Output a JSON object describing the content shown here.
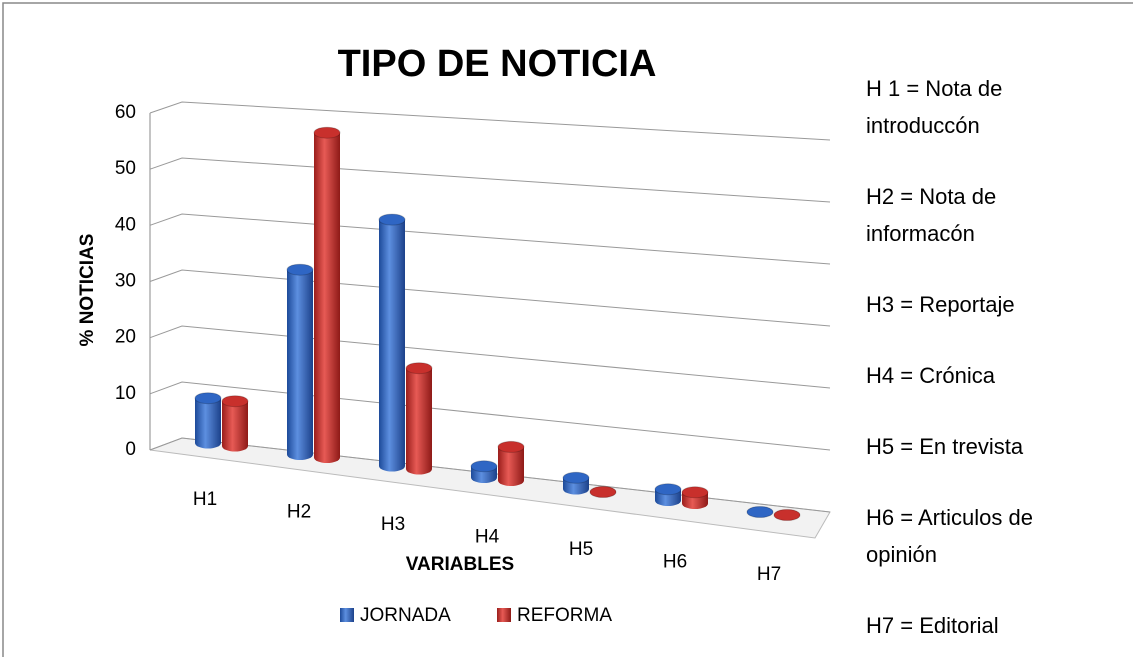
{
  "chart_data": {
    "type": "bar3d",
    "title": "TIPO DE NOTICIA",
    "y_label": "% NOTICIAS",
    "x_label": "VARIABLES",
    "categories": [
      "H1",
      "H2",
      "H3",
      "H4",
      "H5",
      "H6",
      "H7"
    ],
    "series": [
      {
        "name": "JORNADA",
        "color": "#2f66c4",
        "values": [
          8,
          33,
          44,
          2,
          2,
          2,
          0
        ]
      },
      {
        "name": "REFORMA",
        "color": "#c8302c",
        "values": [
          8,
          58,
          18,
          6,
          0,
          2,
          0
        ]
      }
    ],
    "ylim": [
      0,
      60
    ],
    "yticks": [
      0,
      10,
      20,
      30,
      40,
      50,
      60
    ],
    "grid": true,
    "legend": "bottom",
    "annotations": [
      [
        "H 1 = Nota de",
        "introduccón"
      ],
      [
        "H2  = Nota de",
        "informacón"
      ],
      [
        "H3 = Reportaje"
      ],
      [
        "H4 =  Crónica"
      ],
      [
        "H5 = En trevista"
      ],
      [
        "H6 =  Articulos de",
        "opinión"
      ],
      [
        "H7 =  Editorial"
      ]
    ]
  }
}
